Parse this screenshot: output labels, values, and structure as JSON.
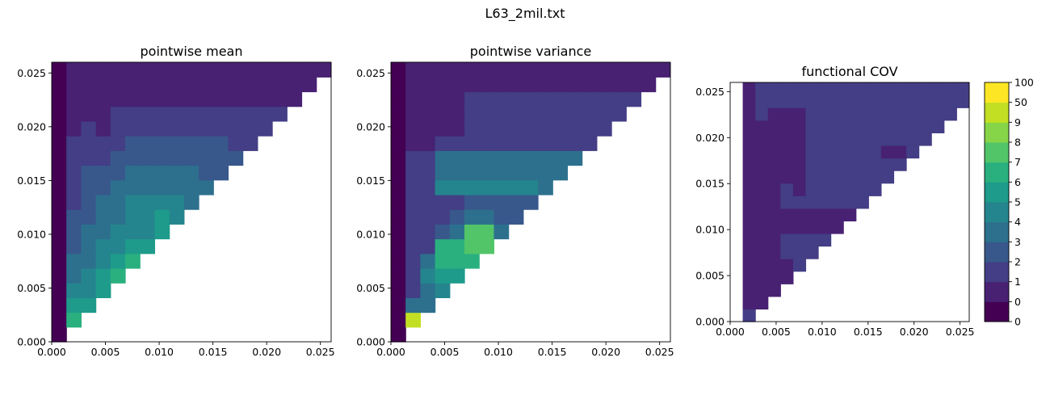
{
  "figure": {
    "suptitle": "L63_2mil.txt"
  },
  "colormap": {
    "colors": [
      "#440154",
      "#482173",
      "#433e85",
      "#38588c",
      "#2d708e",
      "#25858e",
      "#1e9b8a",
      "#2ab07f",
      "#52c569",
      "#86d549",
      "#c2df23",
      "#fde725"
    ],
    "tick_labels": [
      "0",
      "0",
      "1",
      "2",
      "3",
      "4",
      "5",
      "6",
      "7",
      "8",
      "9",
      "50",
      "100"
    ]
  },
  "chart_data": [
    {
      "type": "heatmap",
      "title": "pointwise mean",
      "xlabel": "",
      "ylabel": "",
      "xlim": [
        0,
        0.026
      ],
      "ylim": [
        0,
        0.026
      ],
      "xticks": [
        "0.000",
        "0.005",
        "0.010",
        "0.015",
        "0.020",
        "0.025"
      ],
      "yticks": [
        "0.000",
        "0.005",
        "0.010",
        "0.015",
        "0.020",
        "0.025"
      ],
      "cell_size": 0.001368,
      "column_levels": [
        [
          0,
          0,
          0,
          0,
          0,
          0,
          0,
          0,
          0,
          0,
          0,
          0,
          0,
          0,
          0,
          0,
          0,
          0,
          0
        ],
        [
          null,
          7,
          6,
          5,
          4,
          4,
          3,
          3,
          3,
          2,
          2,
          2,
          2,
          2,
          1,
          1,
          1,
          1,
          1
        ],
        [
          null,
          null,
          6,
          5,
          5,
          4,
          4,
          4,
          3,
          3,
          3,
          3,
          2,
          2,
          2,
          1,
          1,
          1,
          1
        ],
        [
          null,
          null,
          null,
          6,
          6,
          5,
          5,
          4,
          4,
          4,
          3,
          3,
          2,
          2,
          1,
          1,
          1,
          1,
          1
        ],
        [
          null,
          null,
          null,
          null,
          7,
          6,
          5,
          5,
          4,
          4,
          4,
          3,
          3,
          2,
          2,
          2,
          1,
          1,
          1
        ],
        [
          null,
          null,
          null,
          null,
          null,
          7,
          6,
          5,
          5,
          5,
          4,
          4,
          3,
          3,
          2,
          2,
          1,
          1,
          1
        ],
        [
          null,
          null,
          null,
          null,
          null,
          null,
          6,
          5,
          5,
          5,
          4,
          4,
          3,
          3,
          2,
          2,
          1,
          1,
          1
        ],
        [
          null,
          null,
          null,
          null,
          null,
          null,
          null,
          6,
          6,
          5,
          4,
          4,
          3,
          3,
          2,
          2,
          1,
          1,
          1
        ],
        [
          null,
          null,
          null,
          null,
          null,
          null,
          null,
          null,
          5,
          5,
          4,
          4,
          3,
          3,
          2,
          2,
          1,
          1,
          1
        ],
        [
          null,
          null,
          null,
          null,
          null,
          null,
          null,
          null,
          null,
          4,
          4,
          4,
          3,
          3,
          2,
          2,
          1,
          1,
          1
        ],
        [
          null,
          null,
          null,
          null,
          null,
          null,
          null,
          null,
          null,
          null,
          4,
          3,
          3,
          3,
          2,
          2,
          1,
          1,
          1
        ],
        [
          null,
          null,
          null,
          null,
          null,
          null,
          null,
          null,
          null,
          null,
          null,
          3,
          3,
          3,
          2,
          2,
          1,
          1,
          1
        ],
        [
          null,
          null,
          null,
          null,
          null,
          null,
          null,
          null,
          null,
          null,
          null,
          null,
          3,
          2,
          2,
          2,
          1,
          1,
          1
        ],
        [
          null,
          null,
          null,
          null,
          null,
          null,
          null,
          null,
          null,
          null,
          null,
          null,
          null,
          2,
          2,
          2,
          1,
          1,
          1
        ],
        [
          null,
          null,
          null,
          null,
          null,
          null,
          null,
          null,
          null,
          null,
          null,
          null,
          null,
          null,
          2,
          2,
          1,
          1,
          1
        ],
        [
          null,
          null,
          null,
          null,
          null,
          null,
          null,
          null,
          null,
          null,
          null,
          null,
          null,
          null,
          null,
          2,
          1,
          1,
          1
        ],
        [
          null,
          null,
          null,
          null,
          null,
          null,
          null,
          null,
          null,
          null,
          null,
          null,
          null,
          null,
          null,
          null,
          1,
          1,
          1
        ],
        [
          null,
          null,
          null,
          null,
          null,
          null,
          null,
          null,
          null,
          null,
          null,
          null,
          null,
          null,
          null,
          null,
          null,
          1,
          1
        ],
        [
          null,
          null,
          null,
          null,
          null,
          null,
          null,
          null,
          null,
          null,
          null,
          null,
          null,
          null,
          null,
          null,
          null,
          null,
          1
        ]
      ]
    },
    {
      "type": "heatmap",
      "title": "pointwise variance",
      "xlabel": "",
      "ylabel": "",
      "xlim": [
        0,
        0.026
      ],
      "ylim": [
        0,
        0.026
      ],
      "xticks": [
        "0.000",
        "0.005",
        "0.010",
        "0.015",
        "0.020",
        "0.025"
      ],
      "yticks": [
        "0.000",
        "0.005",
        "0.010",
        "0.015",
        "0.020",
        "0.025"
      ],
      "cell_size": 0.001368,
      "column_levels": [
        [
          0,
          0,
          0,
          0,
          0,
          0,
          0,
          0,
          0,
          0,
          0,
          0,
          0,
          0,
          0,
          0,
          0,
          0,
          0
        ],
        [
          null,
          10,
          4,
          2,
          2,
          2,
          2,
          2,
          2,
          2,
          2,
          2,
          2,
          1,
          1,
          1,
          1,
          1,
          1
        ],
        [
          null,
          null,
          4,
          4,
          5,
          4,
          2,
          2,
          2,
          2,
          2,
          2,
          2,
          1,
          1,
          1,
          1,
          1,
          1
        ],
        [
          null,
          null,
          null,
          5,
          6,
          7,
          7,
          3,
          2,
          2,
          5,
          4,
          4,
          2,
          1,
          1,
          1,
          1,
          1
        ],
        [
          null,
          null,
          null,
          null,
          6,
          7,
          7,
          4,
          3,
          2,
          5,
          4,
          4,
          2,
          1,
          1,
          1,
          1,
          1
        ],
        [
          null,
          null,
          null,
          null,
          null,
          7,
          8,
          8,
          4,
          3,
          5,
          4,
          4,
          2,
          2,
          2,
          2,
          1,
          1
        ],
        [
          null,
          null,
          null,
          null,
          null,
          null,
          8,
          8,
          4,
          3,
          5,
          4,
          4,
          2,
          2,
          2,
          2,
          1,
          1
        ],
        [
          null,
          null,
          null,
          null,
          null,
          null,
          null,
          4,
          3,
          3,
          5,
          4,
          4,
          2,
          2,
          2,
          2,
          1,
          1
        ],
        [
          null,
          null,
          null,
          null,
          null,
          null,
          null,
          null,
          3,
          3,
          5,
          4,
          4,
          2,
          2,
          2,
          2,
          1,
          1
        ],
        [
          null,
          null,
          null,
          null,
          null,
          null,
          null,
          null,
          null,
          3,
          5,
          4,
          4,
          2,
          2,
          2,
          2,
          1,
          1
        ],
        [
          null,
          null,
          null,
          null,
          null,
          null,
          null,
          null,
          null,
          null,
          4,
          4,
          4,
          2,
          2,
          2,
          2,
          1,
          1
        ],
        [
          null,
          null,
          null,
          null,
          null,
          null,
          null,
          null,
          null,
          null,
          null,
          4,
          4,
          2,
          2,
          2,
          2,
          1,
          1
        ],
        [
          null,
          null,
          null,
          null,
          null,
          null,
          null,
          null,
          null,
          null,
          null,
          null,
          4,
          2,
          2,
          2,
          2,
          1,
          1
        ],
        [
          null,
          null,
          null,
          null,
          null,
          null,
          null,
          null,
          null,
          null,
          null,
          null,
          null,
          2,
          2,
          2,
          2,
          1,
          1
        ],
        [
          null,
          null,
          null,
          null,
          null,
          null,
          null,
          null,
          null,
          null,
          null,
          null,
          null,
          null,
          2,
          2,
          2,
          1,
          1
        ],
        [
          null,
          null,
          null,
          null,
          null,
          null,
          null,
          null,
          null,
          null,
          null,
          null,
          null,
          null,
          null,
          2,
          2,
          1,
          1
        ],
        [
          null,
          null,
          null,
          null,
          null,
          null,
          null,
          null,
          null,
          null,
          null,
          null,
          null,
          null,
          null,
          null,
          2,
          1,
          1
        ],
        [
          null,
          null,
          null,
          null,
          null,
          null,
          null,
          null,
          null,
          null,
          null,
          null,
          null,
          null,
          null,
          null,
          null,
          1,
          1
        ],
        [
          null,
          null,
          null,
          null,
          null,
          null,
          null,
          null,
          null,
          null,
          null,
          null,
          null,
          null,
          null,
          null,
          null,
          null,
          1
        ]
      ]
    },
    {
      "type": "heatmap",
      "title": "functional COV",
      "xlabel": "",
      "ylabel": "",
      "xlim": [
        0,
        0.026
      ],
      "ylim": [
        0,
        0.026
      ],
      "xticks": [
        "0.000",
        "0.005",
        "0.010",
        "0.015",
        "0.020",
        "0.025"
      ],
      "yticks": [
        "0.000",
        "0.005",
        "0.010",
        "0.015",
        "0.020",
        "0.025"
      ],
      "cell_size": 0.001368,
      "column_levels": [
        [
          null,
          null,
          null,
          null,
          null,
          null,
          null,
          null,
          null,
          null,
          null,
          null,
          null,
          null,
          null,
          null,
          null,
          null,
          null
        ],
        [
          2,
          1,
          1,
          1,
          1,
          1,
          1,
          1,
          1,
          1,
          1,
          1,
          1,
          1,
          1,
          1,
          1,
          1,
          1
        ],
        [
          null,
          1,
          1,
          1,
          1,
          1,
          1,
          1,
          1,
          1,
          1,
          1,
          1,
          1,
          1,
          1,
          2,
          2,
          2
        ],
        [
          null,
          null,
          1,
          1,
          1,
          1,
          1,
          1,
          1,
          1,
          1,
          1,
          1,
          1,
          1,
          1,
          1,
          2,
          2
        ],
        [
          null,
          null,
          null,
          1,
          1,
          2,
          2,
          1,
          1,
          2,
          2,
          1,
          1,
          1,
          1,
          1,
          1,
          2,
          2
        ],
        [
          null,
          null,
          null,
          null,
          2,
          2,
          2,
          1,
          1,
          2,
          1,
          1,
          1,
          1,
          1,
          1,
          1,
          2,
          2
        ],
        [
          null,
          null,
          null,
          null,
          null,
          2,
          2,
          1,
          1,
          2,
          2,
          2,
          2,
          2,
          2,
          2,
          2,
          2,
          2
        ],
        [
          null,
          null,
          null,
          null,
          null,
          null,
          2,
          1,
          1,
          2,
          2,
          2,
          2,
          2,
          2,
          2,
          2,
          2,
          2
        ],
        [
          null,
          null,
          null,
          null,
          null,
          null,
          null,
          1,
          1,
          2,
          2,
          2,
          2,
          2,
          2,
          2,
          2,
          2,
          2
        ],
        [
          null,
          null,
          null,
          null,
          null,
          null,
          null,
          null,
          1,
          2,
          2,
          2,
          2,
          2,
          2,
          2,
          2,
          2,
          2
        ],
        [
          null,
          null,
          null,
          null,
          null,
          null,
          null,
          null,
          null,
          2,
          2,
          2,
          2,
          2,
          2,
          2,
          2,
          2,
          2
        ],
        [
          null,
          null,
          null,
          null,
          null,
          null,
          null,
          null,
          null,
          null,
          2,
          2,
          2,
          2,
          2,
          2,
          2,
          2,
          2
        ],
        [
          null,
          null,
          null,
          null,
          null,
          null,
          null,
          null,
          null,
          null,
          null,
          2,
          2,
          1,
          2,
          2,
          2,
          2,
          2
        ],
        [
          null,
          null,
          null,
          null,
          null,
          null,
          null,
          null,
          null,
          null,
          null,
          null,
          2,
          1,
          2,
          2,
          2,
          2,
          2
        ],
        [
          null,
          null,
          null,
          null,
          null,
          null,
          null,
          null,
          null,
          null,
          null,
          null,
          null,
          2,
          2,
          2,
          2,
          2,
          2
        ],
        [
          null,
          null,
          null,
          null,
          null,
          null,
          null,
          null,
          null,
          null,
          null,
          null,
          null,
          null,
          2,
          2,
          2,
          2,
          2
        ],
        [
          null,
          null,
          null,
          null,
          null,
          null,
          null,
          null,
          null,
          null,
          null,
          null,
          null,
          null,
          null,
          2,
          2,
          2,
          2
        ],
        [
          null,
          null,
          null,
          null,
          null,
          null,
          null,
          null,
          null,
          null,
          null,
          null,
          null,
          null,
          null,
          null,
          2,
          2,
          2
        ],
        [
          null,
          null,
          null,
          null,
          null,
          null,
          null,
          null,
          null,
          null,
          null,
          null,
          null,
          null,
          null,
          null,
          null,
          2,
          2
        ]
      ]
    }
  ]
}
